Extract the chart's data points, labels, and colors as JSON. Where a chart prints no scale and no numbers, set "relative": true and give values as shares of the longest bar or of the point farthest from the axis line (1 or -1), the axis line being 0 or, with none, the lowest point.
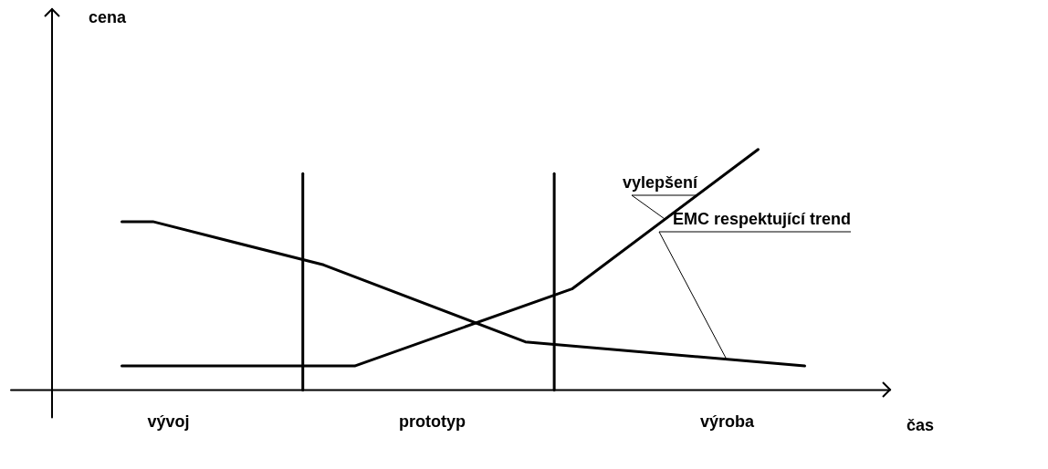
{
  "chart_data": {
    "type": "line",
    "relative": true,
    "xlabel": "čas",
    "annotations": [
      "cena"
    ],
    "categories": [
      null,
      null,
      null,
      null,
      null,
      null,
      null,
      "vývoj",
      null,
      null,
      null,
      null,
      null,
      null,
      null,
      null,
      null,
      null,
      null,
      null,
      null,
      null,
      null,
      null,
      "prototyp",
      null,
      null,
      null,
      null,
      null,
      null,
      null,
      null,
      null,
      null,
      null,
      null,
      null,
      null,
      null,
      null,
      null,
      null,
      "výroba",
      null,
      null,
      null,
      null,
      null,
      null,
      null,
      null,
      null,
      null
    ],
    "series": [
      {
        "name": "EMC respektující trend",
        "color": "#000000",
        "values": [
          null,
          null,
          null,
          null,
          0.7,
          null,
          0.7,
          null,
          null,
          null,
          null,
          null,
          null,
          null,
          null,
          null,
          null,
          0.52,
          null,
          null,
          null,
          null,
          null,
          null,
          null,
          null,
          null,
          null,
          null,
          null,
          0.2,
          null,
          null,
          null,
          null,
          null,
          null,
          null,
          null,
          null,
          null,
          null,
          null,
          null,
          null,
          null,
          null,
          null,
          0.1,
          null,
          null,
          null,
          null,
          null
        ]
      },
      {
        "name": "vylepšení",
        "color": "#000000",
        "values": [
          null,
          null,
          null,
          null,
          0.1,
          null,
          null,
          null,
          null,
          null,
          null,
          null,
          null,
          null,
          null,
          null,
          null,
          null,
          null,
          0.1,
          null,
          null,
          null,
          null,
          null,
          null,
          null,
          null,
          null,
          null,
          null,
          null,
          null,
          0.42,
          null,
          null,
          null,
          null,
          null,
          null,
          null,
          null,
          null,
          null,
          null,
          1.0,
          null,
          null,
          null,
          null,
          null,
          null,
          null,
          null
        ]
      }
    ],
    "grid": false,
    "legend": false,
    "marker": "none",
    "line_style": "solid"
  }
}
